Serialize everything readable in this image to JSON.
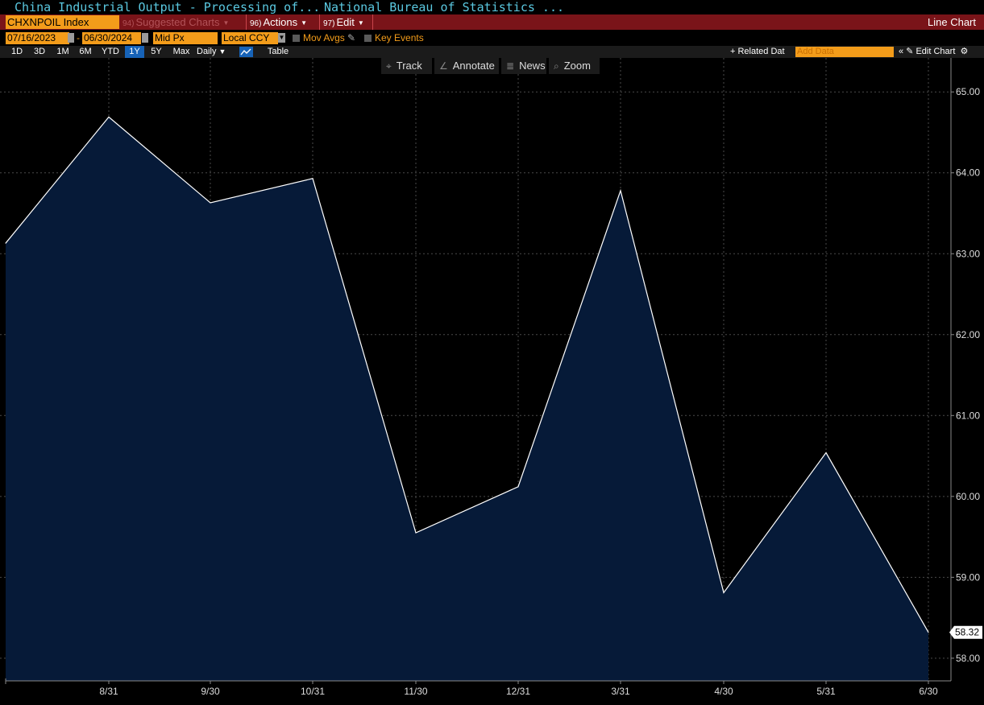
{
  "title": {
    "security_desc": "China Industrial Output - Processing of...",
    "source": "National Bureau of Statistics ..."
  },
  "command_bar": {
    "ticker": "CHXNPOIL Index",
    "suggested": {
      "num": "94)",
      "label": "Suggested Charts"
    },
    "actions": {
      "num": "96)",
      "label": "Actions"
    },
    "edit": {
      "num": "97)",
      "label": "Edit"
    },
    "chart_type": "Line Chart"
  },
  "options": {
    "start_date": "07/16/2023",
    "end_date": "06/30/2024",
    "date_sep": "-",
    "price_field": "Mid Px",
    "currency": "Local CCY",
    "mov_avgs": "Mov Avgs",
    "key_events": "Key Events"
  },
  "ranges": {
    "items": [
      "1D",
      "3D",
      "1M",
      "6M",
      "YTD",
      "1Y",
      "5Y",
      "Max"
    ],
    "active": "1Y",
    "frequency": "Daily",
    "table": "Table",
    "related_data": "Related Dat",
    "add_data_placeholder": "Add Data",
    "edit_chart": "Edit Chart"
  },
  "tools": {
    "track": "Track",
    "annotate": "Annotate",
    "news": "News",
    "zoom": "Zoom"
  },
  "colors": {
    "area_fill": "#061a38",
    "line": "#ffffff",
    "grid": "#4a4a4a",
    "accent_orange": "#f39c1a",
    "command_red": "#7a1419"
  },
  "chart_data": {
    "type": "area",
    "x": [
      "7/31/2023",
      "8/31/2023",
      "9/30/2023",
      "10/31/2023",
      "11/30/2023",
      "12/31/2023",
      "3/31/2024",
      "4/30/2024",
      "5/31/2024",
      "6/30/2024"
    ],
    "values": [
      63.13,
      64.69,
      63.63,
      63.93,
      59.55,
      60.12,
      63.78,
      58.81,
      60.54,
      58.32
    ],
    "x_tick_labels": [
      "8/31",
      "9/30",
      "10/31",
      "11/30",
      "12/31",
      "3/31",
      "4/30",
      "5/31",
      "6/30"
    ],
    "y_tick_labels": [
      "65.00",
      "64.00",
      "63.00",
      "62.00",
      "61.00",
      "60.00",
      "59.00",
      "58.00"
    ],
    "ylim": [
      57.72,
      65.42
    ],
    "last_value_label": "58.32",
    "grid": true
  }
}
